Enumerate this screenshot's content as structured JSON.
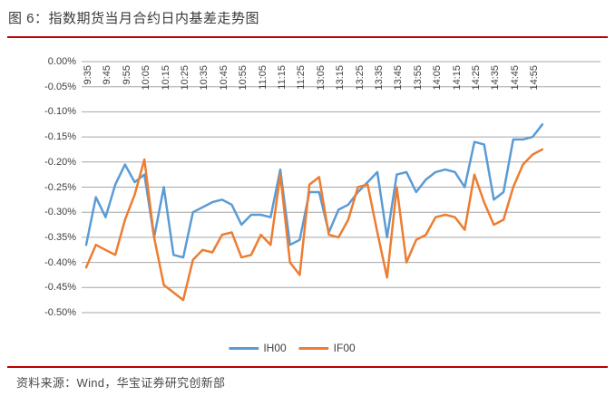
{
  "title": "图 6：指数期货当月合约日内基差走势图",
  "source_note": "资料来源：Wind，华宝证券研究创新部",
  "colors": {
    "accent_red": "#c00000",
    "gridline": "#a6a6a6",
    "axis_text": "#404040",
    "series_ih00": "#5B9BD5",
    "series_if00": "#ED7D31"
  },
  "chart_data": {
    "type": "line",
    "title": "指数期货当月合约日内基差走势图",
    "xlabel": "",
    "ylabel": "",
    "y_unit": "%",
    "ylim": [
      -0.5,
      0.0
    ],
    "grid": true,
    "legend_position": "bottom",
    "y_tick_labels": [
      "0.00%",
      "-0.05%",
      "-0.10%",
      "-0.15%",
      "-0.20%",
      "-0.25%",
      "-0.30%",
      "-0.35%",
      "-0.40%",
      "-0.45%",
      "-0.50%"
    ],
    "y_tick_values": [
      0.0,
      -0.05,
      -0.1,
      -0.15,
      -0.2,
      -0.25,
      -0.3,
      -0.35,
      -0.4,
      -0.45,
      -0.5
    ],
    "x": [
      "9:35",
      "9:40",
      "9:45",
      "9:50",
      "9:55",
      "10:00",
      "10:05",
      "10:10",
      "10:15",
      "10:20",
      "10:25",
      "10:30",
      "10:35",
      "10:40",
      "10:45",
      "10:50",
      "10:55",
      "11:00",
      "11:05",
      "11:10",
      "11:15",
      "11:20",
      "11:25",
      "11:30",
      "13:05",
      "13:10",
      "13:15",
      "13:20",
      "13:25",
      "13:30",
      "13:35",
      "13:40",
      "13:45",
      "13:50",
      "13:55",
      "14:00",
      "14:05",
      "14:10",
      "14:15",
      "14:20",
      "14:25",
      "14:30",
      "14:35",
      "14:40",
      "14:45",
      "14:50",
      "14:55",
      "15:00"
    ],
    "x_label_every": 2,
    "x_tick_labels": [
      "9:35",
      "9:45",
      "9:55",
      "10:05",
      "10:15",
      "10:25",
      "10:35",
      "10:45",
      "10:55",
      "11:05",
      "11:15",
      "11:25",
      "13:05",
      "13:15",
      "13:25",
      "13:35",
      "13:45",
      "13:55",
      "14:05",
      "14:15",
      "14:25",
      "14:35",
      "14:45",
      "14:55"
    ],
    "series": [
      {
        "name": "IH00",
        "color": "#5B9BD5",
        "values": [
          -0.365,
          -0.27,
          -0.31,
          -0.245,
          -0.205,
          -0.24,
          -0.225,
          -0.35,
          -0.25,
          -0.385,
          -0.39,
          -0.3,
          -0.29,
          -0.28,
          -0.275,
          -0.285,
          -0.325,
          -0.305,
          -0.305,
          -0.31,
          -0.215,
          -0.365,
          -0.355,
          -0.26,
          -0.26,
          -0.34,
          -0.295,
          -0.285,
          -0.26,
          -0.24,
          -0.22,
          -0.35,
          -0.225,
          -0.22,
          -0.26,
          -0.235,
          -0.22,
          -0.215,
          -0.22,
          -0.25,
          -0.16,
          -0.165,
          -0.275,
          -0.26,
          -0.155,
          -0.155,
          -0.15,
          -0.125
        ]
      },
      {
        "name": "IF00",
        "color": "#ED7D31",
        "values": [
          -0.41,
          -0.365,
          -0.375,
          -0.385,
          -0.315,
          -0.265,
          -0.195,
          -0.35,
          -0.445,
          -0.46,
          -0.475,
          -0.395,
          -0.375,
          -0.38,
          -0.345,
          -0.34,
          -0.39,
          -0.385,
          -0.345,
          -0.365,
          -0.225,
          -0.4,
          -0.425,
          -0.245,
          -0.23,
          -0.345,
          -0.35,
          -0.315,
          -0.25,
          -0.245,
          -0.34,
          -0.43,
          -0.25,
          -0.4,
          -0.355,
          -0.345,
          -0.31,
          -0.305,
          -0.31,
          -0.335,
          -0.225,
          -0.28,
          -0.325,
          -0.315,
          -0.25,
          -0.205,
          -0.185,
          -0.175
        ]
      }
    ]
  }
}
